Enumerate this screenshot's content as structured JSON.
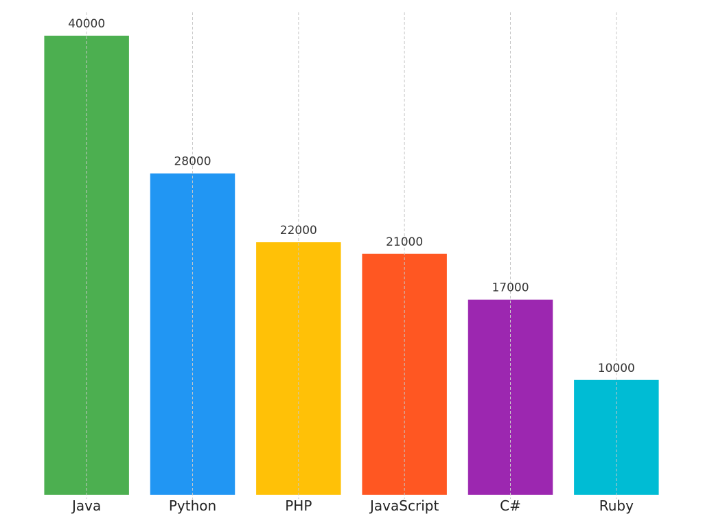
{
  "chart_data": {
    "type": "bar",
    "categories": [
      "Java",
      "Python",
      "PHP",
      "JavaScript",
      "C#",
      "Ruby"
    ],
    "values": [
      40000,
      28000,
      22000,
      21000,
      17000,
      10000
    ],
    "data_labels": [
      "40000",
      "28000",
      "22000",
      "21000",
      "17000",
      "10000"
    ],
    "colors": [
      "#4caf50",
      "#2196f3",
      "#ffc107",
      "#ff5722",
      "#9c27b0",
      "#00bcd4"
    ],
    "title": "",
    "xlabel": "",
    "ylabel": "",
    "ylim": [
      0,
      40000
    ],
    "grid": "vertical dashed",
    "legend": "none"
  }
}
